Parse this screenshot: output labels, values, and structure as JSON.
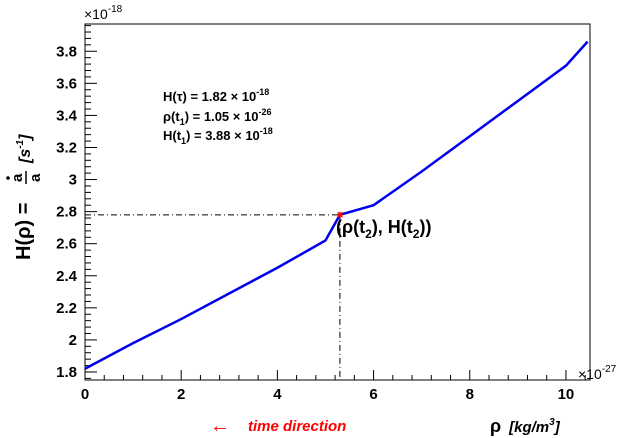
{
  "chart_data": {
    "type": "line",
    "x_scale_label": "×10",
    "x_scale_exp": "-27",
    "y_scale_label": "×10",
    "y_scale_exp": "-18",
    "xlim": [
      0,
      10.5
    ],
    "ylim": [
      1.75,
      3.97
    ],
    "x_ticks": [
      0,
      2,
      4,
      6,
      8,
      10
    ],
    "y_ticks": [
      1.8,
      2,
      2.2,
      2.4,
      2.6,
      2.8,
      3,
      3.2,
      3.4,
      3.6,
      3.8
    ],
    "x_tick_labels": [
      "0",
      "2",
      "4",
      "6",
      "8",
      "10"
    ],
    "y_tick_labels": [
      "1.8",
      "2",
      "2.2",
      "2.4",
      "2.6",
      "2.8",
      "3",
      "3.2",
      "3.4",
      "3.6",
      "3.8"
    ],
    "series": [
      {
        "color": "#0000ee",
        "x": [
          0,
          1,
          2,
          3,
          4,
          5,
          5.3,
          6,
          7,
          8,
          9,
          10,
          10.45
        ],
        "y": [
          1.82,
          1.98,
          2.13,
          2.29,
          2.45,
          2.62,
          2.78,
          2.84,
          3.05,
          3.27,
          3.49,
          3.71,
          3.86
        ]
      }
    ],
    "marker": {
      "x": 5.3,
      "y": 2.78,
      "color": "#ff0000"
    },
    "y_axis_label": {
      "prefix": "H(ρ) = ",
      "numerator": "a",
      "denominator": "a",
      "unit_open": "[s",
      "unit_exp": "-1",
      "unit_close": "]"
    },
    "x_axis_label": {
      "symbol": "ρ",
      "unit_open": "[kg/m",
      "unit_exp": "3",
      "unit_close": "]"
    },
    "time_direction": {
      "arrow": "←",
      "text": "time direction",
      "color": "#ff0000"
    },
    "annotations": [
      {
        "label": "H(τ) = 1.82 ",
        "times": "×",
        "base": " 10",
        "exp": "-18",
        "sub": ""
      },
      {
        "label": "ρ(t",
        "sub": "1",
        "after": ") = 1.05 ",
        "times": "×",
        "base": " 10",
        "exp": "-26"
      },
      {
        "label": "H(t",
        "sub": "1",
        "after": ") = 3.88 ",
        "times": "×",
        "base": " 10",
        "exp": "-18"
      }
    ],
    "point_label": {
      "p1": "(ρ(t",
      "s1": "2",
      "p2": "), H(t",
      "s2": "2",
      "p3": "))"
    }
  }
}
